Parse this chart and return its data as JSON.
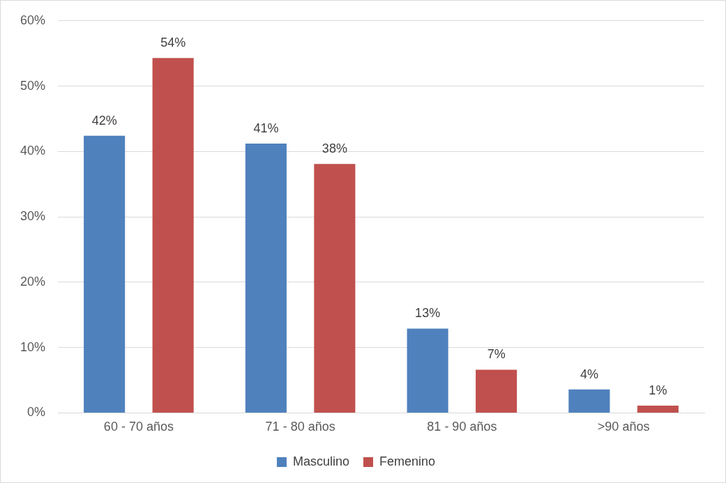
{
  "chart_data": {
    "type": "bar",
    "categories": [
      "60 - 70 años",
      "71 - 80 años",
      "81 - 90 años",
      ">90 años"
    ],
    "series": [
      {
        "name": "Masculino",
        "color": "#4f81bd",
        "values": [
          42.4,
          41.2,
          12.9,
          3.6
        ],
        "value_labels": [
          "42%",
          "41%",
          "13%",
          "4%"
        ]
      },
      {
        "name": "Femenino",
        "color": "#c0504d",
        "values": [
          54.3,
          38.1,
          6.6,
          1.1
        ],
        "value_labels": [
          "54%",
          "38%",
          "7%",
          "1%"
        ]
      }
    ],
    "ylim": [
      0,
      60
    ],
    "yticks": [
      {
        "value": 0,
        "label": "0%"
      },
      {
        "value": 10,
        "label": "10%"
      },
      {
        "value": 20,
        "label": "20%"
      },
      {
        "value": 30,
        "label": "30%"
      },
      {
        "value": 40,
        "label": "40%"
      },
      {
        "value": 50,
        "label": "50%"
      },
      {
        "value": 60,
        "label": "60%"
      }
    ],
    "grid": "y",
    "legend": "bottom"
  }
}
